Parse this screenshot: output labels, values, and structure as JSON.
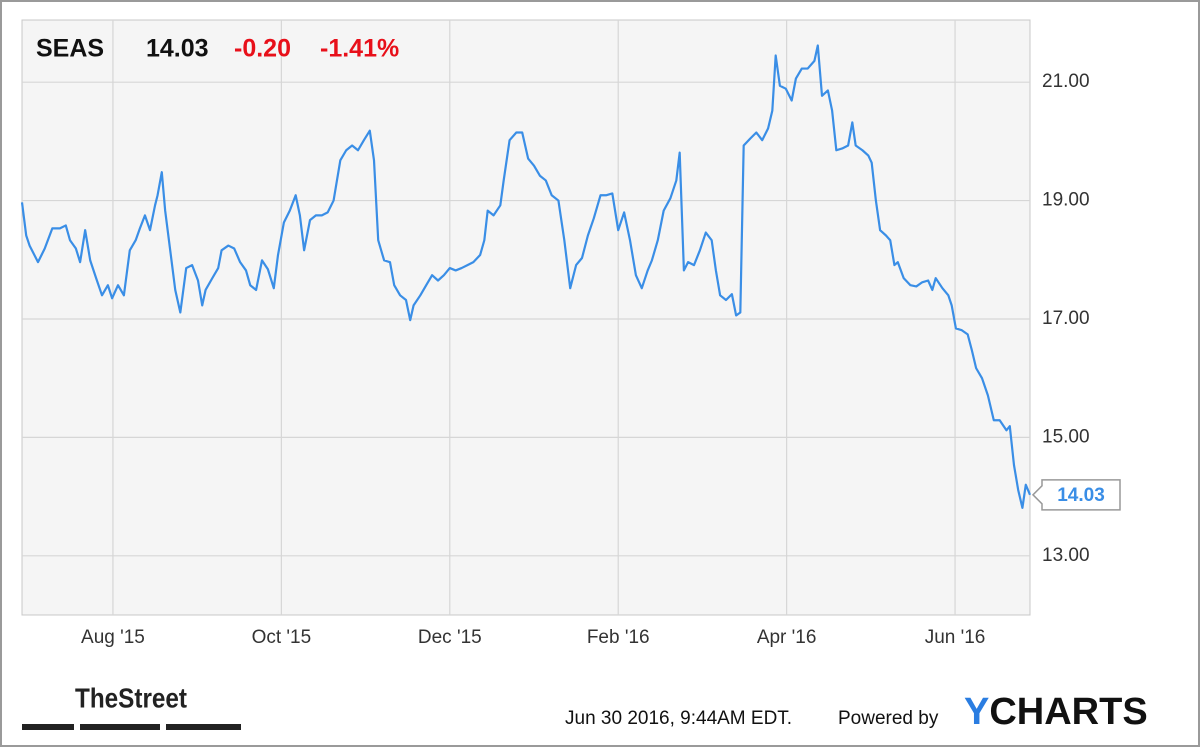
{
  "chart_data": {
    "type": "line",
    "price": "14.03",
    "change": "-0.20",
    "change_pct": "-1.41%",
    "x": [
      -0.08,
      -0.03,
      0.01,
      0.11,
      0.19,
      0.28,
      0.37,
      0.44,
      0.49,
      0.56,
      0.61,
      0.67,
      0.73,
      0.8,
      0.87,
      0.94,
      0.99,
      1.06,
      1.13,
      1.2,
      1.27,
      1.32,
      1.38,
      1.44,
      1.5,
      1.53,
      1.58,
      1.62,
      1.68,
      1.74,
      1.8,
      1.87,
      1.94,
      2.01,
      2.06,
      2.1,
      2.18,
      2.25,
      2.29,
      2.37,
      2.44,
      2.51,
      2.58,
      2.63,
      2.7,
      2.77,
      2.84,
      2.91,
      2.96,
      3.03,
      3.1,
      3.17,
      3.22,
      3.27,
      3.34,
      3.41,
      3.48,
      3.55,
      3.62,
      3.7,
      3.77,
      3.84,
      3.91,
      3.98,
      4.05,
      4.1,
      4.15,
      4.22,
      4.29,
      4.34,
      4.41,
      4.48,
      4.53,
      4.57,
      4.65,
      4.72,
      4.79,
      4.86,
      4.93,
      5.0,
      5.07,
      5.14,
      5.21,
      5.28,
      5.36,
      5.41,
      5.45,
      5.52,
      5.6,
      5.64,
      5.71,
      5.79,
      5.86,
      5.93,
      6.0,
      6.07,
      6.14,
      6.21,
      6.29,
      6.36,
      6.43,
      6.5,
      6.57,
      6.64,
      6.71,
      6.79,
      6.86,
      6.93,
      7.0,
      7.07,
      7.14,
      7.21,
      7.28,
      7.35,
      7.4,
      7.47,
      7.54,
      7.62,
      7.69,
      7.73,
      7.78,
      7.83,
      7.9,
      7.97,
      8.04,
      8.11,
      8.16,
      8.21,
      8.28,
      8.35,
      8.4,
      8.45,
      8.49,
      8.57,
      8.64,
      8.71,
      8.78,
      8.83,
      8.87,
      8.92,
      8.99,
      9.06,
      9.11,
      9.18,
      9.25,
      9.33,
      9.37,
      9.42,
      9.49,
      9.54,
      9.59,
      9.66,
      9.73,
      9.78,
      9.82,
      9.9,
      9.97,
      10.01,
      10.06,
      10.11,
      10.18,
      10.23,
      10.28,
      10.32,
      10.39,
      10.47,
      10.54,
      10.61,
      10.68,
      10.73,
      10.77,
      10.85,
      10.92,
      10.96,
      11.01,
      11.08,
      11.15,
      11.2,
      11.25,
      11.32,
      11.39,
      11.46,
      11.53,
      11.61,
      11.65,
      11.7,
      11.75,
      11.8,
      11.84,
      11.89
    ],
    "series": [
      {
        "name": "SEAS",
        "color": "#3a8ee6",
        "values": [
          18.97,
          18.41,
          18.24,
          17.96,
          18.19,
          18.53,
          18.53,
          18.58,
          18.33,
          18.19,
          17.96,
          18.5,
          17.99,
          17.69,
          17.4,
          17.57,
          17.35,
          17.57,
          17.4,
          18.16,
          18.33,
          18.53,
          18.75,
          18.5,
          18.92,
          19.09,
          19.48,
          18.83,
          18.16,
          17.49,
          17.11,
          17.86,
          17.91,
          17.65,
          17.23,
          17.49,
          17.69,
          17.86,
          18.16,
          18.24,
          18.19,
          17.96,
          17.82,
          17.57,
          17.49,
          17.99,
          17.84,
          17.52,
          18.08,
          18.63,
          18.83,
          19.09,
          18.75,
          18.16,
          18.67,
          18.75,
          18.75,
          18.8,
          19.0,
          19.68,
          19.85,
          19.93,
          19.85,
          20.02,
          20.18,
          19.68,
          18.33,
          17.99,
          17.96,
          17.57,
          17.4,
          17.32,
          16.98,
          17.23,
          17.4,
          17.57,
          17.74,
          17.65,
          17.74,
          17.86,
          17.82,
          17.86,
          17.91,
          17.96,
          18.08,
          18.33,
          18.83,
          18.75,
          18.92,
          19.34,
          20.02,
          20.15,
          20.15,
          19.71,
          19.59,
          19.42,
          19.34,
          19.09,
          19.0,
          18.33,
          17.52,
          17.91,
          18.03,
          18.41,
          18.7,
          19.09,
          19.09,
          19.12,
          18.5,
          18.8,
          18.33,
          17.74,
          17.52,
          17.82,
          17.99,
          18.33,
          18.83,
          19.04,
          19.34,
          19.81,
          17.82,
          17.96,
          17.91,
          18.16,
          18.46,
          18.33,
          17.82,
          17.4,
          17.32,
          17.42,
          17.06,
          17.11,
          19.93,
          20.05,
          20.15,
          20.02,
          20.22,
          20.52,
          21.45,
          20.94,
          20.89,
          20.69,
          21.06,
          21.23,
          21.23,
          21.36,
          21.62,
          20.77,
          20.86,
          20.52,
          19.85,
          19.88,
          19.93,
          20.32,
          19.93,
          19.85,
          19.76,
          19.64,
          19.0,
          18.5,
          18.41,
          18.33,
          17.91,
          17.96,
          17.69,
          17.57,
          17.55,
          17.62,
          17.65,
          17.49,
          17.69,
          17.52,
          17.4,
          17.23,
          16.84,
          16.81,
          16.74,
          16.47,
          16.17,
          16.0,
          15.71,
          15.29,
          15.29,
          15.12,
          15.19,
          14.53,
          14.11,
          13.81,
          14.2,
          14.03
        ]
      }
    ],
    "xlim": [
      -0.08,
      11.89
    ],
    "ylim": [
      12.0,
      22.05
    ],
    "xticks": [
      {
        "value": 1,
        "label": "Aug '15"
      },
      {
        "value": 3,
        "label": "Oct '15"
      },
      {
        "value": 5,
        "label": "Dec '15"
      },
      {
        "value": 7,
        "label": "Feb '16"
      },
      {
        "value": 9,
        "label": "Apr '16"
      },
      {
        "value": 11,
        "label": "Jun '16"
      }
    ],
    "yticks": [
      {
        "value": 13,
        "label": "13.00"
      },
      {
        "value": 15,
        "label": "15.00"
      },
      {
        "value": 17,
        "label": "17.00"
      },
      {
        "value": 19,
        "label": "19.00"
      },
      {
        "value": 21,
        "label": "21.00"
      }
    ],
    "grid": true
  },
  "footer": {
    "brand": "TheStreet",
    "timestamp": "Jun 30 2016, 9:44AM EDT.",
    "powered": "Powered by",
    "logo": "YCHARTS"
  }
}
